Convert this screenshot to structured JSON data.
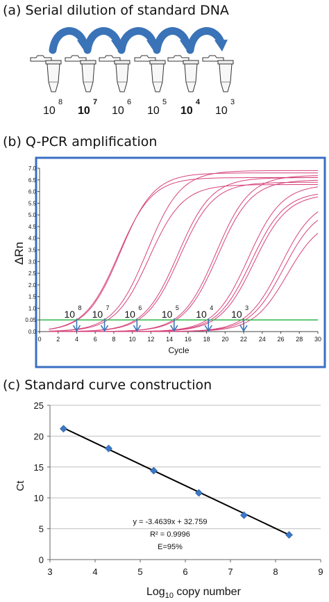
{
  "panel_a": {
    "title": "(a) Serial dilution of standard DNA",
    "tubes": [
      {
        "base": "10",
        "exp": "8",
        "bold": false
      },
      {
        "base": "10",
        "exp": "7",
        "bold": true
      },
      {
        "base": "10",
        "exp": "6",
        "bold": false
      },
      {
        "base": "10",
        "exp": "5",
        "bold": false
      },
      {
        "base": "10",
        "exp": "4",
        "bold": true
      },
      {
        "base": "10",
        "exp": "3",
        "bold": false
      }
    ],
    "arrow_color": "#3a73b7"
  },
  "panel_b": {
    "title": "(b)  Q-PCR amplification",
    "frame_color": "#3a6fc4",
    "curve_color": "#d6417a",
    "threshold_color": "#2db84a",
    "arrow_color": "#3a73b7",
    "chart_data": {
      "type": "line",
      "xlabel": "Cycle",
      "ylabel": "ΔRn",
      "xlim": [
        0,
        30
      ],
      "ylim": [
        0,
        7
      ],
      "x_ticks": [
        "0",
        "2",
        "4",
        "6",
        "8",
        "10",
        "12",
        "14",
        "16",
        "18",
        "20",
        "22",
        "24",
        "26",
        "28",
        "30"
      ],
      "y_ticks": [
        "0.0",
        "0.05",
        "1.0",
        "1.5",
        "2.0",
        "2.5",
        "3.0",
        "3.5",
        "4.0",
        "4.5",
        "5.0",
        "5.5",
        "6.0",
        "6.5",
        "7.0"
      ],
      "threshold": 0.5,
      "series": [
        {
          "ct": 4.2,
          "plateau": 6.8
        },
        {
          "ct": 4.0,
          "plateau": 6.6
        },
        {
          "ct": 7.3,
          "plateau": 6.3
        },
        {
          "ct": 7.1,
          "plateau": 6.9
        },
        {
          "ct": 10.4,
          "plateau": 6.6
        },
        {
          "ct": 10.6,
          "plateau": 6.4
        },
        {
          "ct": 14.5,
          "plateau": 6.7
        },
        {
          "ct": 14.7,
          "plateau": 6.5
        },
        {
          "ct": 18.0,
          "plateau": 6.3
        },
        {
          "ct": 18.3,
          "plateau": 6.0
        },
        {
          "ct": 18.6,
          "plateau": 5.9
        },
        {
          "ct": 21.5,
          "plateau": 5.7
        },
        {
          "ct": 21.8,
          "plateau": 5.4
        },
        {
          "ct": 22.2,
          "plateau": 4.9
        }
      ],
      "ct_markers": [
        {
          "x": 4,
          "base": "10",
          "exp": "8"
        },
        {
          "x": 7,
          "base": "10",
          "exp": "7"
        },
        {
          "x": 10.5,
          "base": "10",
          "exp": "6"
        },
        {
          "x": 14.5,
          "base": "10",
          "exp": "5"
        },
        {
          "x": 18.2,
          "base": "10",
          "exp": "4"
        },
        {
          "x": 22,
          "base": "10",
          "exp": "3"
        }
      ]
    }
  },
  "panel_c": {
    "title": "(c)   Standard curve construction",
    "chart_data": {
      "type": "scatter",
      "xlabel": "Log",
      "xlabel_sub": "10",
      "xlabel_rest": " copy number",
      "ylabel": "Ct",
      "xlim": [
        3,
        9
      ],
      "ylim": [
        0,
        25
      ],
      "x_ticks": [
        3,
        4,
        5,
        6,
        7,
        8,
        9
      ],
      "y_ticks": [
        0,
        5,
        10,
        15,
        20,
        25
      ],
      "points": [
        {
          "x": 3.3,
          "y": 21.2
        },
        {
          "x": 4.3,
          "y": 18.0
        },
        {
          "x": 5.3,
          "y": 14.4
        },
        {
          "x": 6.3,
          "y": 10.8
        },
        {
          "x": 7.3,
          "y": 7.2
        },
        {
          "x": 8.3,
          "y": 4.0
        }
      ],
      "fit": {
        "slope": -3.4639,
        "intercept": 32.759
      },
      "equation": "y = -3.4639x + 32.759",
      "r2": "R² = 0.9996",
      "efficiency": "E=95%",
      "marker_color": "#3b78c8"
    }
  }
}
